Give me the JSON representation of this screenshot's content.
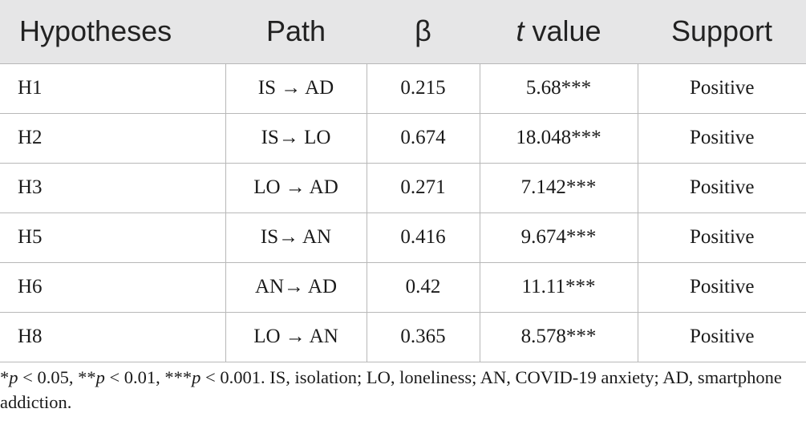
{
  "table": {
    "headers": {
      "hypotheses": "Hypotheses",
      "path": "Path",
      "beta": "β",
      "t_italic": "t",
      "t_rest": " value",
      "support": "Support"
    },
    "rows": [
      {
        "hypothesis": "H1",
        "path": "IS → AD",
        "beta": "0.215",
        "t": "5.68***",
        "support": "Positive"
      },
      {
        "hypothesis": "H2",
        "path": "IS→ LO",
        "beta": "0.674",
        "t": "18.048***",
        "support": "Positive"
      },
      {
        "hypothesis": "H3",
        "path": "LO → AD",
        "beta": "0.271",
        "t": "7.142***",
        "support": "Positive"
      },
      {
        "hypothesis": "H5",
        "path": "IS→ AN",
        "beta": "0.416",
        "t": "9.674***",
        "support": "Positive"
      },
      {
        "hypothesis": "H6",
        "path": "AN→ AD",
        "beta": "0.42",
        "t": "11.11***",
        "support": "Positive"
      },
      {
        "hypothesis": "H8",
        "path": "LO → AN",
        "beta": "0.365",
        "t": "8.578***",
        "support": "Positive"
      }
    ]
  },
  "footnote": {
    "star1": "*",
    "p1": "p",
    "t1": " < 0.05, **",
    "p2": "p",
    "t2": " < 0.01, ***",
    "p3": "p",
    "t3": " < 0.001. IS, isolation; LO, loneliness; AN, COVID-19 anxiety; AD, smartphone addiction."
  }
}
